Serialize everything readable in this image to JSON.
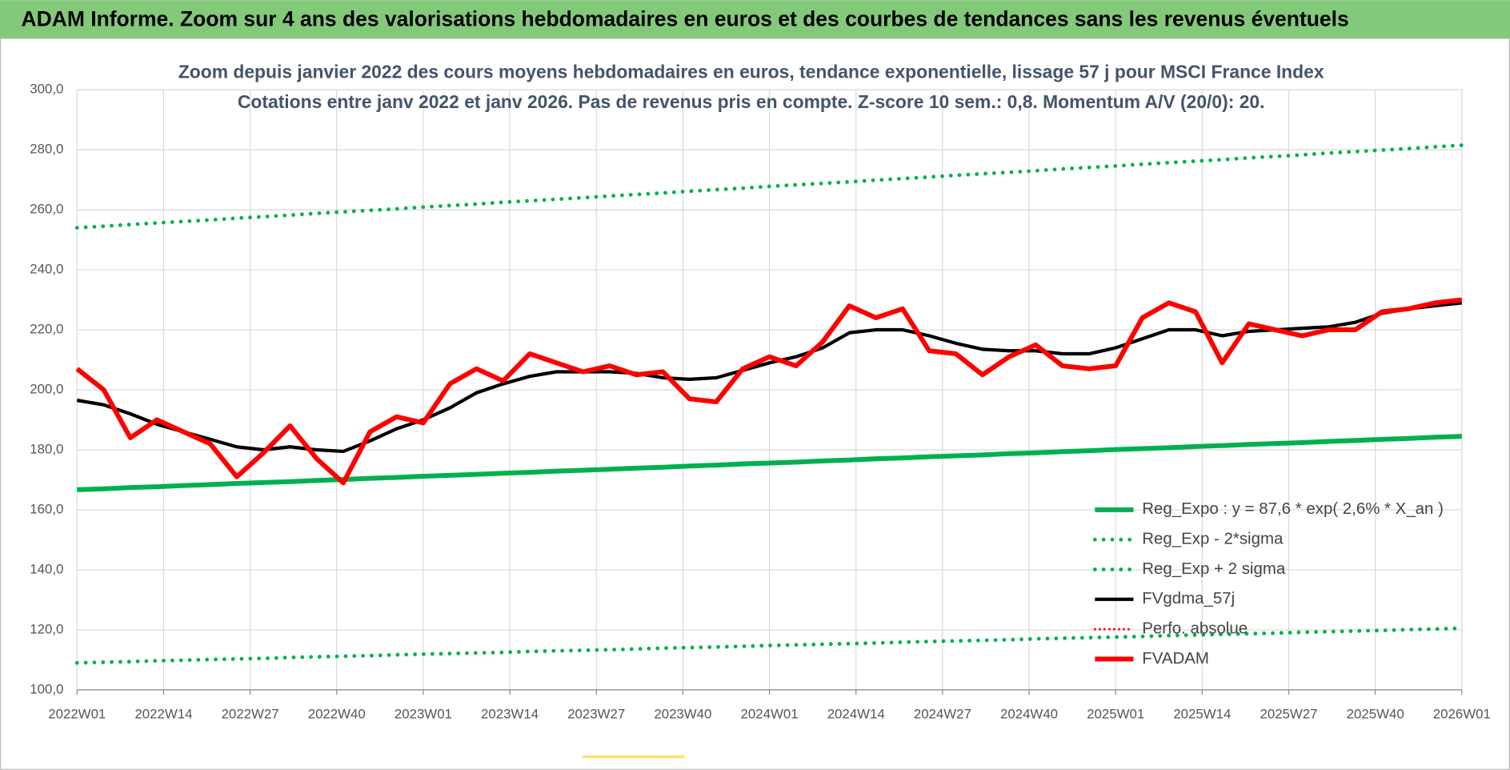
{
  "chart_data": {
    "type": "line",
    "header": "ADAM Informe. Zoom sur 4 ans des valorisations hebdomadaires en euros et des courbes de tendances sans les revenus éventuels",
    "title": "Zoom depuis janvier 2022 des cours moyens hebdomadaires en euros, tendance exponentielle, lissage 57 j pour MSCI France Index",
    "subtitle": "Cotations entre janv 2022 et janv 2026. Pas de revenus pris en compte. Z-score 10 sem.: 0,8. Momentum A/V (20/0): 20.",
    "x": [
      0,
      4,
      8,
      12,
      16,
      20,
      24,
      28,
      32,
      36,
      40,
      44,
      48,
      52,
      56,
      60,
      64,
      68,
      72,
      76,
      80,
      84,
      88,
      92,
      96,
      100,
      104,
      108,
      112,
      116,
      120,
      124,
      128,
      132,
      136,
      140,
      144,
      148,
      152,
      156,
      160,
      164,
      168,
      172,
      176,
      180,
      184,
      188,
      192,
      196,
      200,
      204,
      208
    ],
    "xlim": [
      0,
      208
    ],
    "xticks": [
      {
        "value": 0,
        "label": "2022W01"
      },
      {
        "value": 13,
        "label": "2022W14"
      },
      {
        "value": 26,
        "label": "2022W27"
      },
      {
        "value": 39,
        "label": "2022W40"
      },
      {
        "value": 52,
        "label": "2023W01"
      },
      {
        "value": 65,
        "label": "2023W14"
      },
      {
        "value": 78,
        "label": "2023W27"
      },
      {
        "value": 91,
        "label": "2023W40"
      },
      {
        "value": 104,
        "label": "2024W01"
      },
      {
        "value": 117,
        "label": "2024W14"
      },
      {
        "value": 130,
        "label": "2024W27"
      },
      {
        "value": 143,
        "label": "2024W40"
      },
      {
        "value": 156,
        "label": "2025W01"
      },
      {
        "value": 169,
        "label": "2025W14"
      },
      {
        "value": 182,
        "label": "2025W27"
      },
      {
        "value": 195,
        "label": "2025W40"
      },
      {
        "value": 208,
        "label": "2026W01"
      }
    ],
    "ylim": [
      100,
      300
    ],
    "yticks": [
      {
        "value": 100,
        "label": "100,0"
      },
      {
        "value": 120,
        "label": "120,0"
      },
      {
        "value": 140,
        "label": "140,0"
      },
      {
        "value": 160,
        "label": "160,0"
      },
      {
        "value": 180,
        "label": "180,0"
      },
      {
        "value": 200,
        "label": "200,0"
      },
      {
        "value": 220,
        "label": "220,0"
      },
      {
        "value": 240,
        "label": "240,0"
      },
      {
        "value": 260,
        "label": "260,0"
      },
      {
        "value": 280,
        "label": "280,0"
      },
      {
        "value": 300,
        "label": "300,0"
      }
    ],
    "grid": true,
    "legend": "bottom-right",
    "series": [
      {
        "name": "Reg_Expo : y = 87,6 * exp( 2,6% *  X_an )",
        "color": "#00b050",
        "line_style": "solid",
        "values": [
          166.7,
          167.0,
          167.4,
          167.7,
          168.1,
          168.4,
          168.8,
          169.1,
          169.4,
          169.8,
          170.1,
          170.5,
          170.8,
          171.2,
          171.5,
          171.8,
          172.2,
          172.5,
          172.9,
          173.2,
          173.5,
          173.9,
          174.2,
          174.6,
          174.9,
          175.3,
          175.6,
          175.9,
          176.3,
          176.6,
          177.0,
          177.3,
          177.7,
          178.0,
          178.3,
          178.7,
          179.0,
          179.4,
          179.7,
          180.1,
          180.4,
          180.7,
          181.1,
          181.4,
          181.8,
          182.1,
          182.4,
          182.8,
          183.1,
          183.5,
          183.8,
          184.2,
          184.5
        ]
      },
      {
        "name": "Reg_Exp - 2*sigma",
        "color": "#00b050",
        "line_style": "dotted",
        "values": [
          109.0,
          109.2,
          109.4,
          109.7,
          109.9,
          110.1,
          110.3,
          110.5,
          110.8,
          111.0,
          111.2,
          111.4,
          111.7,
          111.9,
          112.1,
          112.3,
          112.5,
          112.8,
          113.0,
          113.2,
          113.4,
          113.6,
          113.9,
          114.1,
          114.3,
          114.5,
          114.8,
          115.0,
          115.2,
          115.4,
          115.6,
          115.9,
          116.1,
          116.3,
          116.5,
          116.7,
          117.0,
          117.2,
          117.4,
          117.6,
          117.8,
          118.1,
          118.3,
          118.5,
          118.7,
          118.9,
          119.2,
          119.4,
          119.6,
          119.8,
          120.1,
          120.3,
          120.5
        ]
      },
      {
        "name": "Reg_Exp + 2 sigma",
        "color": "#00b050",
        "line_style": "dotted",
        "values": [
          254.0,
          254.5,
          255.1,
          255.6,
          256.1,
          256.6,
          257.2,
          257.7,
          258.2,
          258.8,
          259.3,
          259.8,
          260.3,
          260.9,
          261.4,
          261.9,
          262.5,
          263.0,
          263.5,
          264.0,
          264.6,
          265.1,
          265.6,
          266.2,
          266.7,
          267.2,
          267.8,
          268.3,
          268.8,
          269.3,
          269.9,
          270.4,
          270.9,
          271.5,
          272.0,
          272.5,
          273.0,
          273.6,
          274.1,
          274.6,
          275.2,
          275.7,
          276.2,
          276.7,
          277.3,
          277.8,
          278.3,
          278.9,
          279.4,
          279.9,
          280.4,
          281.0,
          281.5
        ]
      },
      {
        "name": "FVgdma_57j",
        "color": "#000000",
        "line_style": "solid",
        "values": [
          196.5,
          195,
          192,
          188.5,
          186,
          183.5,
          181,
          180,
          181,
          180,
          179.5,
          183,
          187,
          190,
          194,
          199,
          202,
          204.5,
          206,
          206,
          206,
          205.5,
          204,
          203.5,
          204,
          206.5,
          209,
          211,
          214,
          219,
          220,
          220,
          218,
          215.5,
          213.5,
          213,
          213,
          212,
          212,
          214,
          217,
          220,
          220,
          218,
          219.5,
          220,
          220.5,
          221,
          222.5,
          225.5,
          227,
          228,
          229
        ]
      },
      {
        "name": "Perfo. absolue",
        "color": "#ff0000",
        "line_style": "dotted",
        "values": [
          null,
          null,
          null,
          null,
          null,
          null,
          null,
          null,
          null,
          null,
          null,
          null,
          null,
          null,
          null,
          null,
          null,
          null,
          null,
          null,
          null,
          null,
          null,
          null,
          null,
          null,
          null,
          null,
          null,
          null,
          null,
          null,
          null,
          null,
          null,
          null,
          null,
          null,
          null,
          null,
          null,
          null,
          null,
          null,
          null,
          null,
          null,
          null,
          null,
          null,
          null,
          null,
          null
        ]
      },
      {
        "name": "FVADAM",
        "color": "#ff0000",
        "line_style": "solid",
        "values": [
          207,
          200,
          184,
          190,
          186,
          182,
          171,
          179,
          188,
          177,
          169,
          186,
          191,
          189,
          202,
          207,
          203,
          212,
          209,
          206,
          208,
          205,
          206,
          197,
          196,
          207,
          211,
          208,
          216,
          228,
          224,
          227,
          213,
          212,
          205,
          211,
          215,
          208,
          207,
          208,
          224,
          229,
          226,
          209,
          222,
          220,
          218,
          220,
          220,
          226,
          227,
          229,
          230
        ]
      }
    ]
  }
}
